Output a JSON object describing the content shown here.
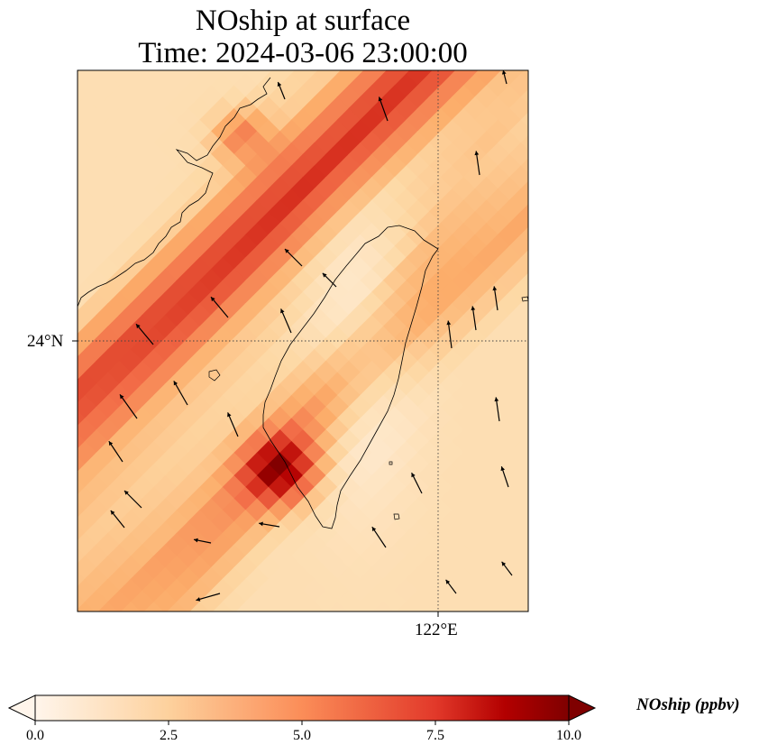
{
  "figure": {
    "title_line1": "NOship at surface",
    "title_line2": "Time: 2024-03-06 23:00:00"
  },
  "map": {
    "lat_label": "24°N",
    "lon_label": "122°E",
    "colormap": [
      "#fff5eb",
      "#fdd9a6",
      "#fcae6b",
      "#f26c47",
      "#d7301f",
      "#b30000",
      "#7f0000"
    ]
  },
  "colorbar": {
    "label": "NOship (ppbv)",
    "ticks": [
      "0.0",
      "2.5",
      "5.0",
      "7.5",
      "10.0"
    ],
    "range": [
      0,
      10
    ]
  }
}
